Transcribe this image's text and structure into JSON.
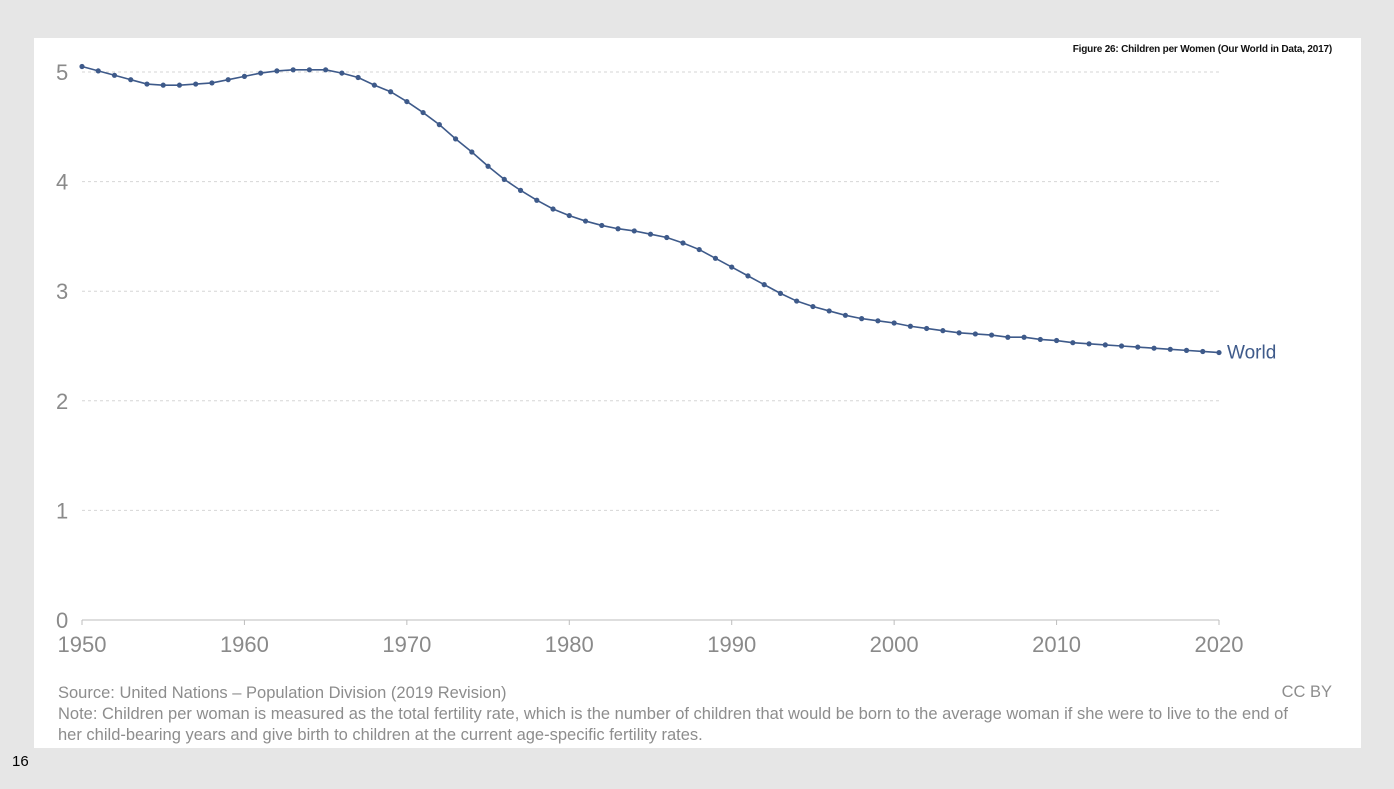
{
  "figure_caption": "Figure 26: Children per Women (Our World in Data, 2017)",
  "source": "Source: United Nations – Population Division (2019 Revision)",
  "note": "Note: Children per woman is measured as the total fertility rate, which is the number of children that would be born to the average woman if she were to live to the end of her child-bearing years and give birth to children at the current age-specific fertility rates.",
  "license": "CC BY",
  "page_number": "16",
  "colors": {
    "line": "#3e5a8a",
    "grid": "#d6d6d6",
    "axis_text": "#8a8a8a"
  },
  "chart_data": {
    "type": "line",
    "title": "",
    "xlabel": "",
    "ylabel": "",
    "xlim": [
      1950,
      2020
    ],
    "ylim": [
      0,
      5
    ],
    "x_ticks": [
      "1950",
      "1960",
      "1970",
      "1980",
      "1990",
      "2000",
      "2010",
      "2020"
    ],
    "y_ticks": [
      "0",
      "1",
      "2",
      "3",
      "4",
      "5"
    ],
    "grid": "horizontal-dashed",
    "series": [
      {
        "name": "World",
        "x": [
          1950,
          1951,
          1952,
          1953,
          1954,
          1955,
          1956,
          1957,
          1958,
          1959,
          1960,
          1961,
          1962,
          1963,
          1964,
          1965,
          1966,
          1967,
          1968,
          1969,
          1970,
          1971,
          1972,
          1973,
          1974,
          1975,
          1976,
          1977,
          1978,
          1979,
          1980,
          1981,
          1982,
          1983,
          1984,
          1985,
          1986,
          1987,
          1988,
          1989,
          1990,
          1991,
          1992,
          1993,
          1994,
          1995,
          1996,
          1997,
          1998,
          1999,
          2000,
          2001,
          2002,
          2003,
          2004,
          2005,
          2006,
          2007,
          2008,
          2009,
          2010,
          2011,
          2012,
          2013,
          2014,
          2015,
          2016,
          2017,
          2018,
          2019,
          2020
        ],
        "values": [
          5.05,
          5.01,
          4.97,
          4.93,
          4.89,
          4.88,
          4.88,
          4.89,
          4.9,
          4.93,
          4.96,
          4.99,
          5.01,
          5.02,
          5.02,
          5.02,
          4.99,
          4.95,
          4.88,
          4.82,
          4.73,
          4.63,
          4.52,
          4.39,
          4.27,
          4.14,
          4.02,
          3.92,
          3.83,
          3.75,
          3.69,
          3.64,
          3.6,
          3.57,
          3.55,
          3.52,
          3.49,
          3.44,
          3.38,
          3.3,
          3.22,
          3.14,
          3.06,
          2.98,
          2.91,
          2.86,
          2.82,
          2.78,
          2.75,
          2.73,
          2.71,
          2.68,
          2.66,
          2.64,
          2.62,
          2.61,
          2.6,
          2.58,
          2.58,
          2.56,
          2.55,
          2.53,
          2.52,
          2.51,
          2.5,
          2.49,
          2.48,
          2.47,
          2.46,
          2.45,
          2.44
        ]
      }
    ]
  }
}
